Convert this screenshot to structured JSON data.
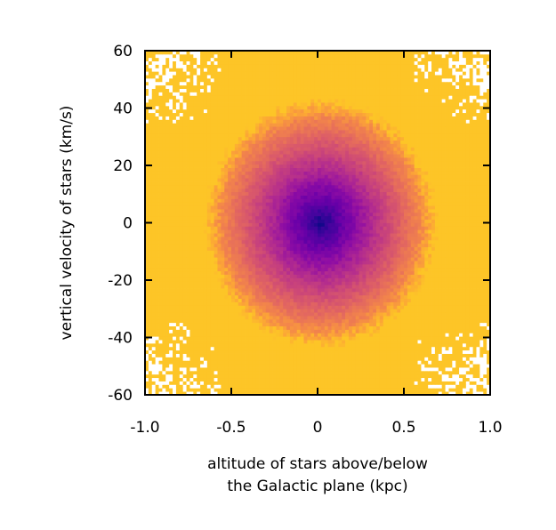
{
  "chart_data": {
    "type": "heatmap",
    "title": "",
    "xlabel_lines": [
      "altitude of stars above/below",
      "the Galactic plane (kpc)"
    ],
    "ylabel": "vertical velocity of stars (km/s)",
    "xlim": [
      -1.0,
      1.0
    ],
    "ylim": [
      -60,
      60
    ],
    "xticks": [
      -1.0,
      -0.5,
      0.0,
      0.5,
      1.0
    ],
    "xtick_labels": [
      "-1.0",
      "-0.5",
      "0",
      "0.5",
      "1.0"
    ],
    "yticks": [
      -60,
      -40,
      -20,
      0,
      20,
      40,
      60
    ],
    "ytick_labels": [
      "-60",
      "-40",
      "-20",
      "0",
      "20",
      "40",
      "60"
    ],
    "grid": false,
    "colormap": "plasma",
    "colors": {
      "lowest_density": "#fdc527",
      "mid_density": "#cc4778",
      "highest_density": "#1a0b6b",
      "empty_bin": "#ffffff"
    },
    "density_peak": {
      "z_kpc": 0.02,
      "vz_kms": 0
    },
    "bins": {
      "x": 100,
      "y": 100
    }
  }
}
